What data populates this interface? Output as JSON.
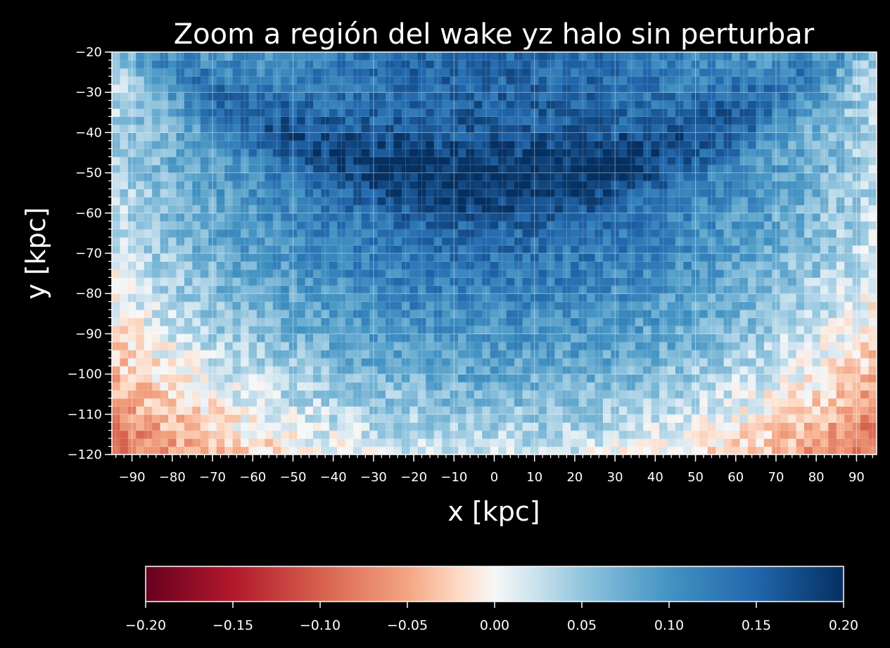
{
  "chart_data": {
    "type": "heatmap",
    "title": "Zoom a región del wake yz halo sin perturbar",
    "xlabel": "x [kpc]",
    "ylabel": "y [kpc]",
    "xlim": [
      -95,
      95
    ],
    "ylim": [
      -120,
      -20
    ],
    "x_ticks": [
      -90,
      -80,
      -70,
      -60,
      -50,
      -40,
      -30,
      -20,
      -10,
      0,
      10,
      20,
      30,
      40,
      50,
      60,
      70,
      80,
      90
    ],
    "x_tick_labels": [
      "−90",
      "−80",
      "−70",
      "−60",
      "−50",
      "−40",
      "−30",
      "−20",
      "−10",
      "0",
      "10",
      "20",
      "30",
      "40",
      "50",
      "60",
      "70",
      "80",
      "90"
    ],
    "y_ticks": [
      -20,
      -30,
      -40,
      -50,
      -60,
      -70,
      -80,
      -90,
      -100,
      -110,
      -120
    ],
    "y_tick_labels": [
      "−20",
      "−30",
      "−40",
      "−50",
      "−60",
      "−70",
      "−80",
      "−90",
      "−100",
      "−110",
      "−120"
    ],
    "grid": true,
    "colormap": "RdBu",
    "colorbar": {
      "orientation": "horizontal",
      "placement": "bottom",
      "range": [
        -0.2,
        0.2
      ],
      "ticks": [
        -0.2,
        -0.15,
        -0.1,
        -0.05,
        0.0,
        0.05,
        0.1,
        0.15,
        0.2
      ],
      "tick_labels": [
        "−0.20",
        "−0.15",
        "−0.10",
        "−0.05",
        "0.00",
        "0.05",
        "0.10",
        "0.15",
        "0.20"
      ]
    },
    "colors": {
      "background": "#000000",
      "low": "#67001f",
      "mid": "#f7f7f7",
      "high": "#053061"
    },
    "value_summary": {
      "top_center_wake_arc": 0.18,
      "upper_region": 0.14,
      "lower_edges": -0.05
    }
  }
}
